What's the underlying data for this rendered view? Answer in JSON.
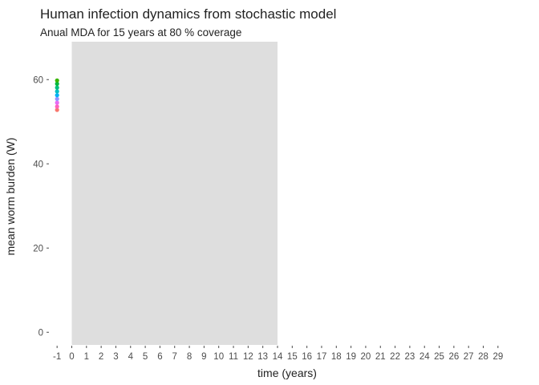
{
  "chart_data": {
    "type": "scatter",
    "title": "Human infection dynamics from stochastic model",
    "subtitle": "Anual MDA for 15 years at 80 % coverage",
    "xlabel": "time (years)",
    "ylabel": "mean worm burden (W)",
    "xlim": [
      -1.5,
      29.5
    ],
    "ylim": [
      -3,
      69
    ],
    "xticks": [
      -1,
      0,
      1,
      2,
      3,
      4,
      5,
      6,
      7,
      8,
      9,
      10,
      11,
      12,
      13,
      14,
      15,
      16,
      17,
      18,
      19,
      20,
      21,
      22,
      23,
      24,
      25,
      26,
      27,
      28,
      29
    ],
    "yticks": [
      0,
      20,
      40,
      60
    ],
    "shaded_region": {
      "x_start": 0,
      "x_end": 14,
      "color": "#dedede"
    },
    "grid": false,
    "series": [
      {
        "color": "#f8766d",
        "x": [
          -1
        ],
        "y": [
          52.8
        ]
      },
      {
        "color": "#ff62bc",
        "x": [
          -1
        ],
        "y": [
          53.6
        ]
      },
      {
        "color": "#e76bf3",
        "x": [
          -1
        ],
        "y": [
          54.5
        ]
      },
      {
        "color": "#9590ff",
        "x": [
          -1
        ],
        "y": [
          55.4
        ]
      },
      {
        "color": "#00b0f6",
        "x": [
          -1
        ],
        "y": [
          56.3
        ]
      },
      {
        "color": "#00bfc4",
        "x": [
          -1
        ],
        "y": [
          57.2
        ]
      },
      {
        "color": "#00bf7d",
        "x": [
          -1
        ],
        "y": [
          58.1
        ]
      },
      {
        "color": "#00b83f",
        "x": [
          -1
        ],
        "y": [
          59.0
        ]
      },
      {
        "color": "#39b600",
        "x": [
          -1
        ],
        "y": [
          59.8
        ]
      }
    ]
  }
}
